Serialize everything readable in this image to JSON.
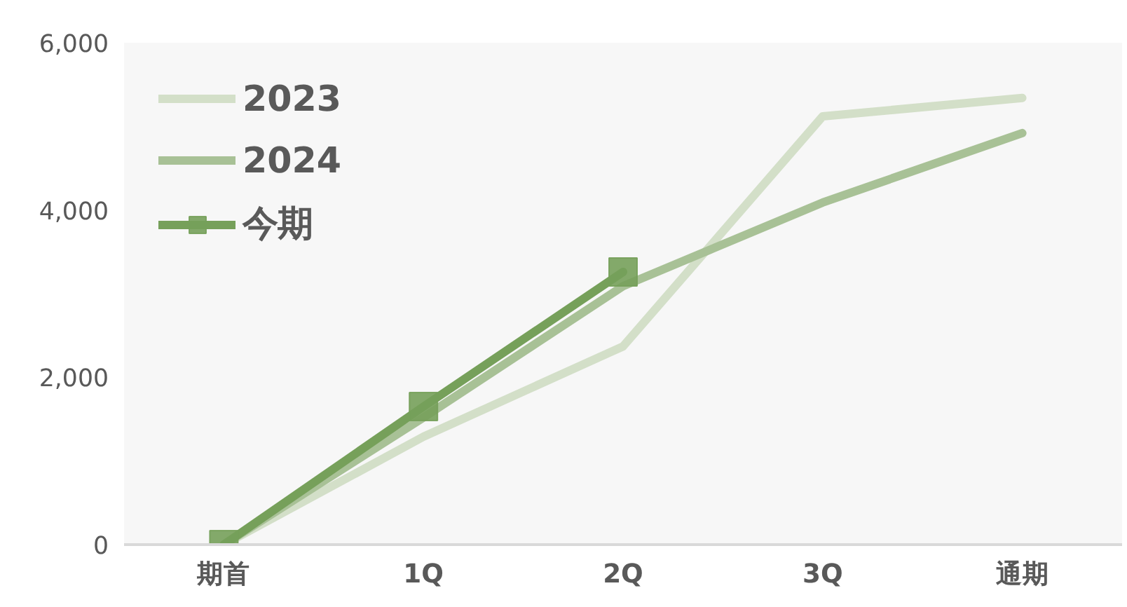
{
  "chart_data": {
    "type": "line",
    "categories": [
      "期首",
      "1Q",
      "2Q",
      "3Q",
      "通期"
    ],
    "series": [
      {
        "name": "2023",
        "color": "#d3dfc8",
        "values": [
          0,
          1290,
          2370,
          5120,
          5340
        ],
        "marker": "none"
      },
      {
        "name": "2024",
        "color": "#a8c196",
        "values": [
          0,
          1520,
          3090,
          4090,
          4920
        ],
        "marker": "none"
      },
      {
        "name": "今期",
        "color": "#76a05a",
        "values": [
          0,
          1650,
          3260,
          null,
          null
        ],
        "marker": "square"
      }
    ],
    "ylim": [
      0,
      6000
    ],
    "yticks": [
      {
        "value": 0,
        "label": "0"
      },
      {
        "value": 2000,
        "label": "2,000"
      },
      {
        "value": 4000,
        "label": "4,000"
      },
      {
        "value": 6000,
        "label": "6,000"
      }
    ],
    "grid": false,
    "legend": "top left",
    "line_style": "solid"
  }
}
